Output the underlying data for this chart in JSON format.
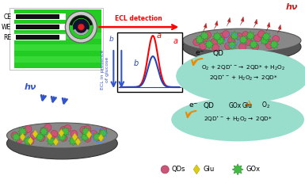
{
  "bg_color": "#ffffff",
  "green_bg_color": "#22cc22",
  "green_glow": "#55ee55",
  "dark_green": "#009900",
  "electrode_labels": [
    "CE",
    "WE",
    "RE"
  ],
  "ecl_detection_label": "ECL detection",
  "hv_label": "hν",
  "teal_color": "#99ddcc",
  "disk_top_color": "#888888",
  "disk_surface": "#999999",
  "qd_color": "#cc5577",
  "qd_edge": "#aa3355",
  "gox_color": "#44bb44",
  "gox_edge": "#228822",
  "glu_color": "#ddcc11",
  "glu_edge": "#aaaa00",
  "red_bolt": "#cc2222",
  "blue_bolt": "#3355cc",
  "orange_arrow": "#ee8800"
}
